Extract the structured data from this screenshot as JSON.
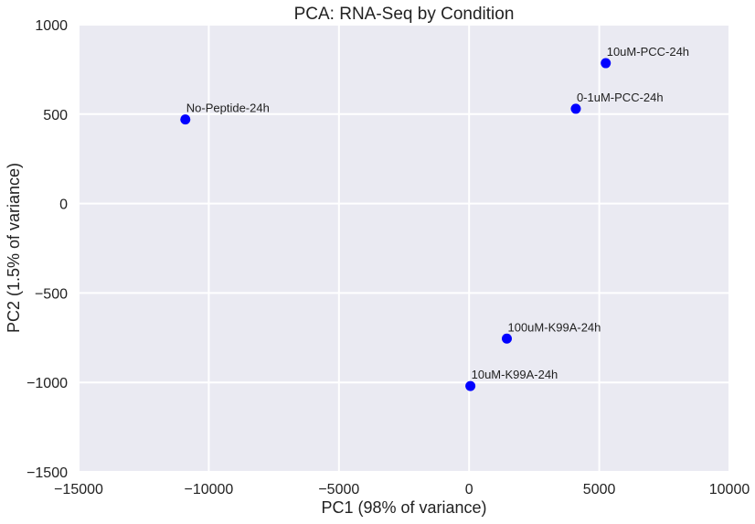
{
  "chart_data": {
    "type": "scatter",
    "title": "PCA: RNA-Seq by Condition",
    "xlabel": "PC1 (98% of variance)",
    "ylabel": "PC2 (1.5% of variance)",
    "xlim": [
      -15000,
      10000
    ],
    "ylim": [
      -1500,
      1000
    ],
    "xticks": [
      -15000,
      -10000,
      -5000,
      0,
      5000,
      10000
    ],
    "yticks": [
      -1500,
      -1000,
      -500,
      0,
      500,
      1000
    ],
    "xtick_labels": [
      "−15000",
      "−10000",
      "−5000",
      "0",
      "5000",
      "10000"
    ],
    "ytick_labels": [
      "−1500",
      "−1000",
      "−500",
      "0",
      "500",
      "1000"
    ],
    "grid": true,
    "colors": {
      "background": "#eaeaf2",
      "grid": "#ffffff",
      "point": "#0000ff"
    },
    "points": [
      {
        "label": "No-Peptide-24h",
        "x": -10900,
        "y": 470
      },
      {
        "label": "10uM-PCC-24h",
        "x": 5250,
        "y": 785
      },
      {
        "label": "0-1uM-PCC-24h",
        "x": 4100,
        "y": 530
      },
      {
        "label": "100uM-K99A-24h",
        "x": 1450,
        "y": -755
      },
      {
        "label": "10uM-K99A-24h",
        "x": 50,
        "y": -1020
      }
    ]
  }
}
